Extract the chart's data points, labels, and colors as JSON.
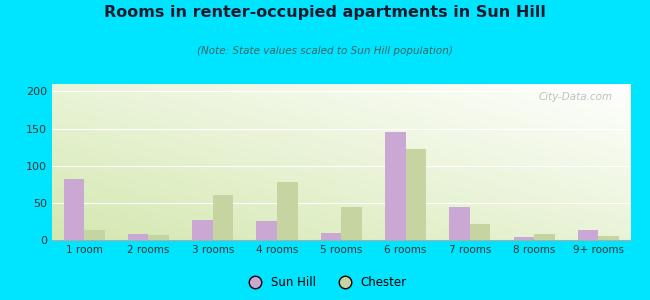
{
  "title": "Rooms in renter-occupied apartments in Sun Hill",
  "subtitle": "(Note: State values scaled to Sun Hill population)",
  "categories": [
    "1 room",
    "2 rooms",
    "3 rooms",
    "4 rooms",
    "5 rooms",
    "6 rooms",
    "7 rooms",
    "8 rooms",
    "9+ rooms"
  ],
  "sun_hill": [
    82,
    8,
    27,
    25,
    10,
    145,
    45,
    4,
    13
  ],
  "chester": [
    13,
    7,
    60,
    78,
    44,
    122,
    21,
    8,
    6
  ],
  "sun_hill_color": "#c9a8d4",
  "chester_color": "#c5d4a0",
  "background_outer": "#00e5ff",
  "ylim": [
    0,
    210
  ],
  "yticks": [
    0,
    50,
    100,
    150,
    200
  ],
  "legend_labels": [
    "Sun Hill",
    "Chester"
  ],
  "watermark": "City-Data.com",
  "title_color": "#1a1a2e",
  "subtitle_color": "#336666"
}
